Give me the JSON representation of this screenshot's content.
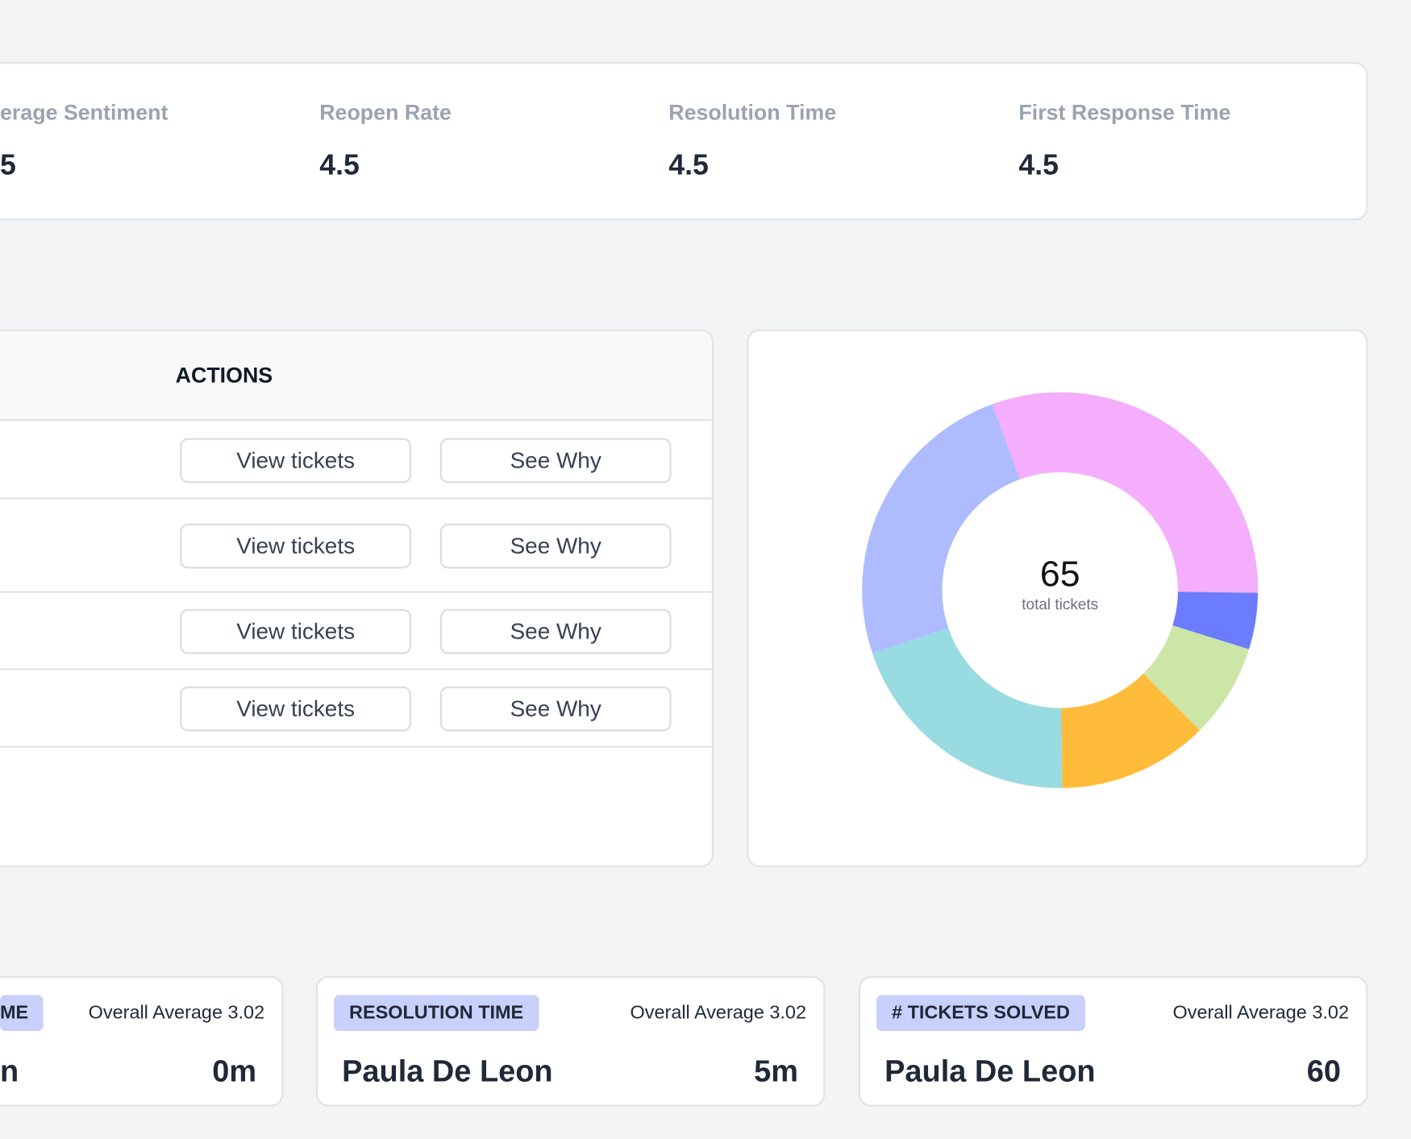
{
  "metrics": [
    {
      "label": "erage Sentiment",
      "value": 5
    },
    {
      "label": "Reopen Rate",
      "value": 4.5
    },
    {
      "label": "Resolution Time",
      "value": 4.5
    },
    {
      "label": "First Response Time",
      "value": 4.5
    }
  ],
  "table": {
    "header": "ACTIONS",
    "rows": [
      [
        "View tickets",
        "See Why"
      ],
      [
        "View tickets",
        "See Why"
      ],
      [
        "View tickets",
        "See Why"
      ],
      [
        "View tickets",
        "See Why"
      ]
    ]
  },
  "chart_data": {
    "type": "donut",
    "values": [
      20,
      3,
      5,
      8,
      13,
      16
    ],
    "colors": [
      "#f4aefc",
      "#6b7cff",
      "#cce6a8",
      "#ffbb3a",
      "#98dbe0",
      "#aebcff"
    ],
    "center_value": 65,
    "center_label": "total tickets"
  },
  "stats": [
    {
      "badge": "ME",
      "overall": "Overall Average 3.02",
      "name": "n",
      "value": "0m"
    },
    {
      "badge": "RESOLUTION TIME",
      "overall": "Overall Average 3.02",
      "name": "Paula De Leon",
      "value": "5m"
    },
    {
      "badge": "# TICKETS SOLVED",
      "overall": "Overall Average 3.02",
      "name": "Paula De Leon",
      "value": "60"
    }
  ]
}
